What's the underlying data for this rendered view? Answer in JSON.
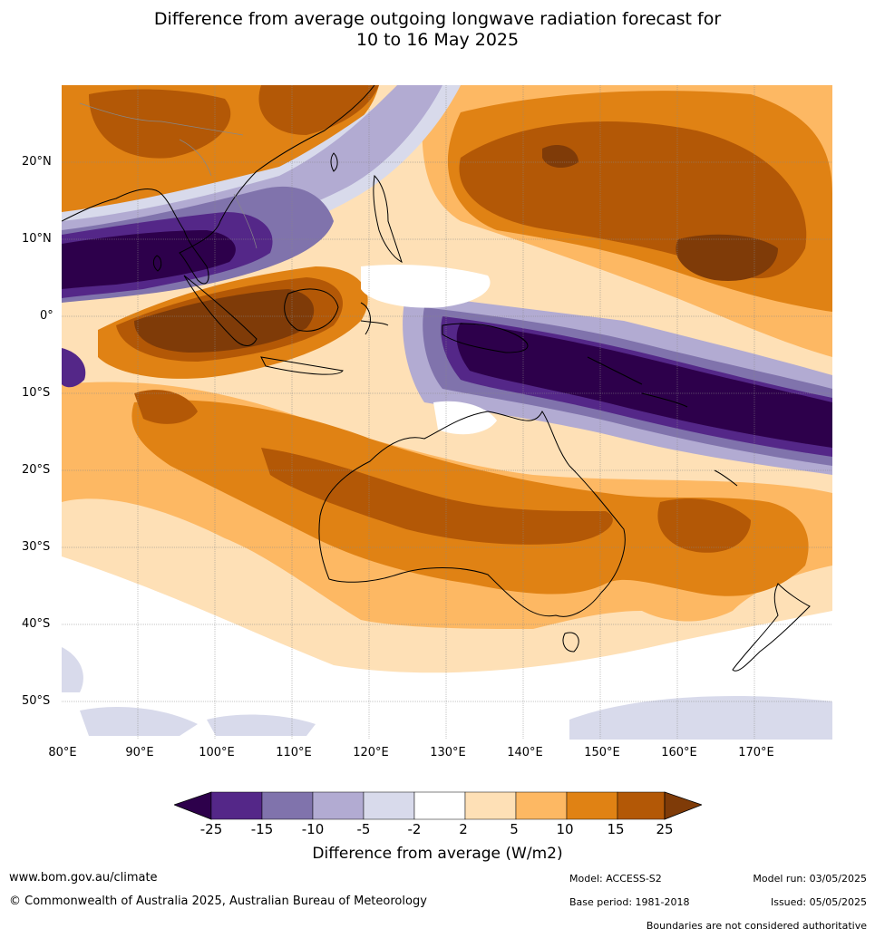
{
  "title": {
    "line1": "Difference from average outgoing longwave radiation forecast for",
    "line2": "10 to 16 May 2025"
  },
  "map": {
    "lat_labels": [
      "20°N",
      "10°N",
      "0°",
      "10°S",
      "20°S",
      "30°S",
      "40°S",
      "50°S"
    ],
    "lon_labels": [
      "80°E",
      "90°E",
      "100°E",
      "110°E",
      "120°E",
      "130°E",
      "140°E",
      "150°E",
      "160°E",
      "170°E"
    ]
  },
  "colorbar": {
    "ticks": [
      "-25",
      "-15",
      "-10",
      "-5",
      "-2",
      "2",
      "5",
      "10",
      "15",
      "25"
    ],
    "colors": [
      "#2d004b",
      "#542788",
      "#8073ac",
      "#b2abd2",
      "#d8daeb",
      "#ffffff",
      "#fee0b6",
      "#fdb863",
      "#e08214",
      "#b35806",
      "#7f3b08"
    ],
    "label": "Difference from average (W/m2)"
  },
  "footer": {
    "website": "www.bom.gov.au/climate",
    "copyright": "© Commonwealth of Australia 2025, Australian Bureau of Meteorology",
    "model": "Model: ACCESS-S2",
    "base_period": "Base period: 1981-2018",
    "model_run": "Model run: 03/05/2025",
    "issued": "Issued: 05/05/2025",
    "disclaimer": "Boundaries are not considered authoritative"
  }
}
